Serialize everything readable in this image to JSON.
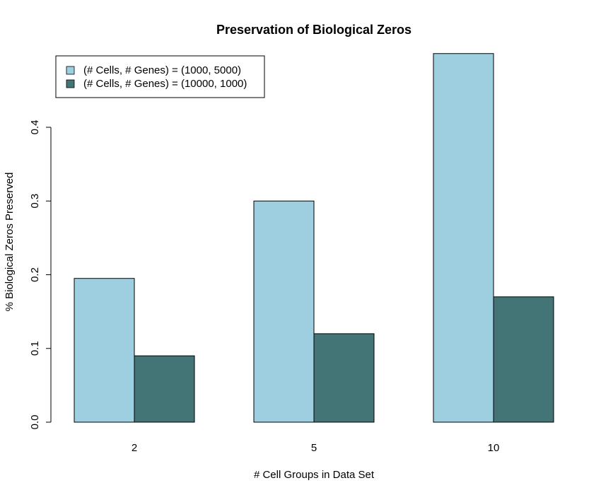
{
  "chart_data": {
    "type": "bar",
    "title": "Preservation of Biological Zeros",
    "xlabel": "# Cell Groups in Data Set",
    "ylabel": "% Biological Zeros Preserved",
    "categories": [
      "2",
      "5",
      "10"
    ],
    "series": [
      {
        "name": "(# Cells, # Genes) = (1000, 5000)",
        "color": "#9ecfe0",
        "values": [
          0.195,
          0.3,
          0.5
        ]
      },
      {
        "name": "(# Cells, # Genes) = (10000, 1000)",
        "color": "#437577",
        "values": [
          0.09,
          0.12,
          0.17
        ]
      }
    ],
    "ylim": [
      0,
      0.5
    ],
    "yticks": [
      "0.0",
      "0.1",
      "0.2",
      "0.3",
      "0.4"
    ],
    "grid": false,
    "legend_position": "top-left"
  }
}
